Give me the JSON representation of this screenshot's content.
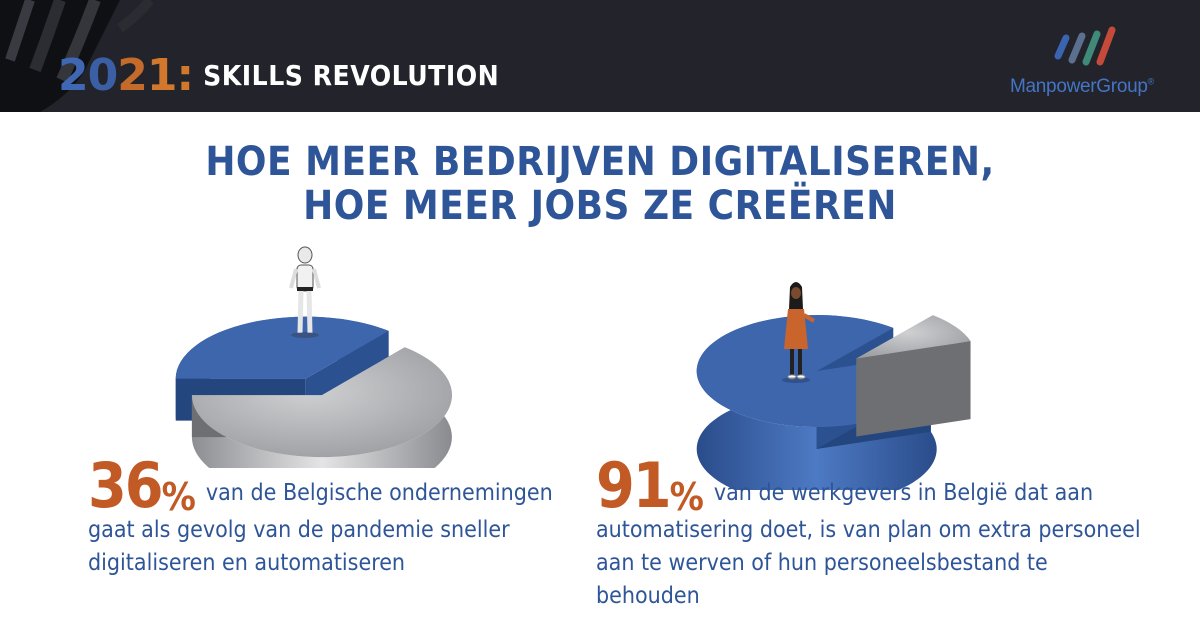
{
  "header": {
    "year_digits": [
      "2",
      "0",
      "2",
      "1"
    ],
    "year_colon": ":",
    "subtitle": "SKILLS REVOLUTION",
    "logo_text": "ManpowerGroup",
    "logo_reg": "®"
  },
  "headline": {
    "line1": "HOE MEER BEDRIJVEN DIGITALISEREN,",
    "line2": "HOE MEER JOBS ZE CREËREN"
  },
  "colors": {
    "blue": "#2e5597",
    "orange": "#c25a26",
    "slice_blue": "#3d66ad",
    "slice_grey": "#b9babd",
    "header_bg": "#23242b"
  },
  "chart_data": [
    {
      "type": "pie",
      "values": [
        36,
        64
      ],
      "highlight_index": 0,
      "stat_value": "36",
      "stat_unit": "%",
      "caption_line1": "van de Belgische ondernemingen",
      "caption_line2": "gaat als gevolg van de pandemie sneller",
      "caption_line3": "digitaliseren en automatiseren"
    },
    {
      "type": "pie",
      "values": [
        91,
        9
      ],
      "highlight_index": 0,
      "stat_value": "91",
      "stat_unit": "%",
      "caption_line1": "van de werkgevers in België dat aan",
      "caption_line2": "automatisering doet, is van plan om extra personeel",
      "caption_line3": "aan te werven of hun personeelsbestand te behouden"
    }
  ]
}
